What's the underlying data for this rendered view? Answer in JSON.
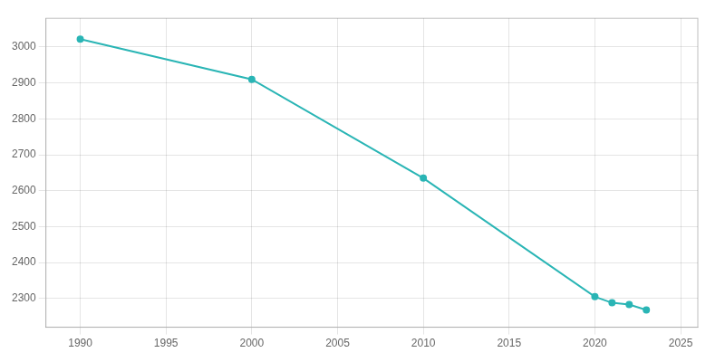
{
  "chart_data": {
    "type": "line",
    "x": [
      1990,
      2000,
      2010,
      2020,
      2021,
      2022,
      2023
    ],
    "values": [
      3022,
      2910,
      2635,
      2305,
      2288,
      2283,
      2268
    ],
    "color": "#2ab5b5",
    "marker": "circle",
    "xlim": [
      1988,
      2026
    ],
    "ylim": [
      2220,
      3080
    ],
    "xticks": [
      1990,
      1995,
      2000,
      2005,
      2010,
      2015,
      2020,
      2025
    ],
    "yticks": [
      2300,
      2400,
      2500,
      2600,
      2700,
      2800,
      2900,
      3000
    ],
    "grid": true
  }
}
